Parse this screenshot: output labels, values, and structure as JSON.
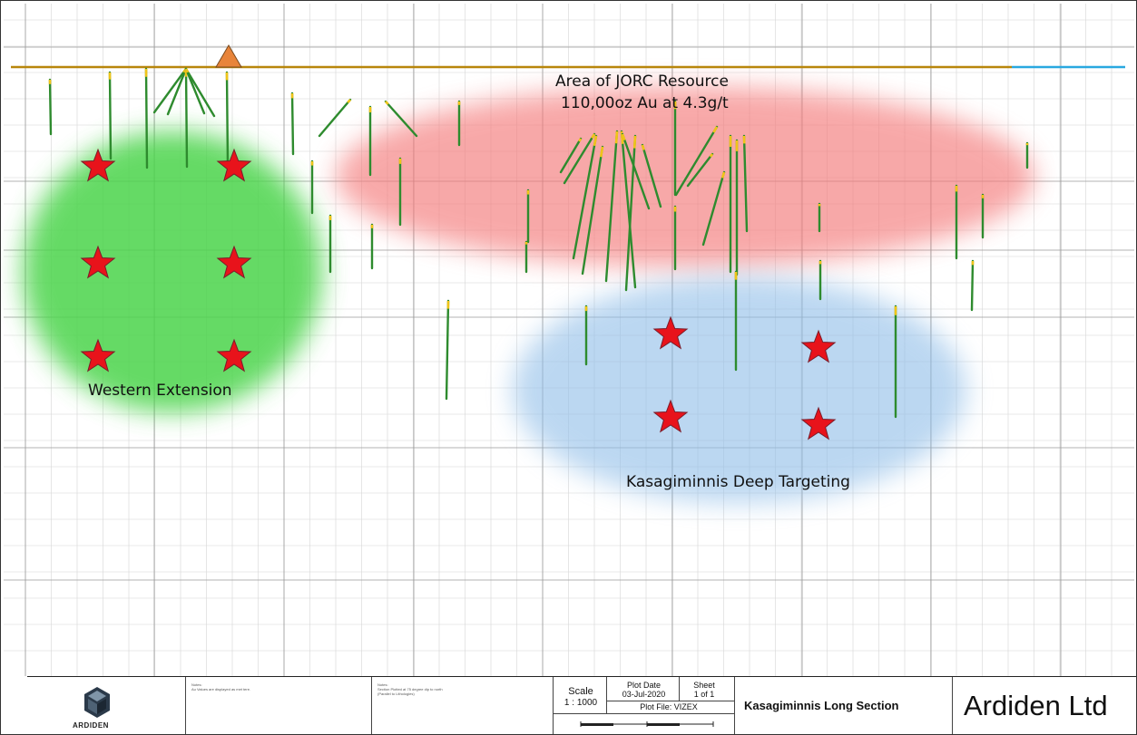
{
  "zones": {
    "jorc": {
      "title": "Area of JORC Resource",
      "subtitle": "110,00oz Au at 4.3g/t",
      "color": "#f47a7a"
    },
    "west": {
      "label": "Western Extension",
      "color": "#4bd44b"
    },
    "deep": {
      "label": "Kasagiminnis Deep Targeting",
      "color": "#8fbde8"
    }
  },
  "surface_colors": {
    "topography": "#b8860b",
    "water": "#29a8e0"
  },
  "target_marker": {
    "icon": "red-star-icon",
    "color": "#e8131b"
  },
  "collar_marker": {
    "icon": "orange-triangle-icon",
    "color": "#e8843a"
  },
  "title_block": {
    "notes_1": "Notes:\nAu Values are displayed as met tere.",
    "notes_2": "Notes:\nSection Plotted at 75 degree dip to north\n(Parallel to Lithologies)",
    "scale_label": "Scale",
    "scale_value": "1 : 1000",
    "plot_date_label": "Plot Date",
    "plot_date_value": "03-Jul-2020",
    "sheet_label": "Sheet",
    "sheet_value": "1 of 1",
    "plot_file": "Plot File: VIZEX",
    "section_title": "Kasagiminnis Long Section",
    "company": "Ardiden Ltd",
    "logo_text": "ARDIDEN"
  }
}
